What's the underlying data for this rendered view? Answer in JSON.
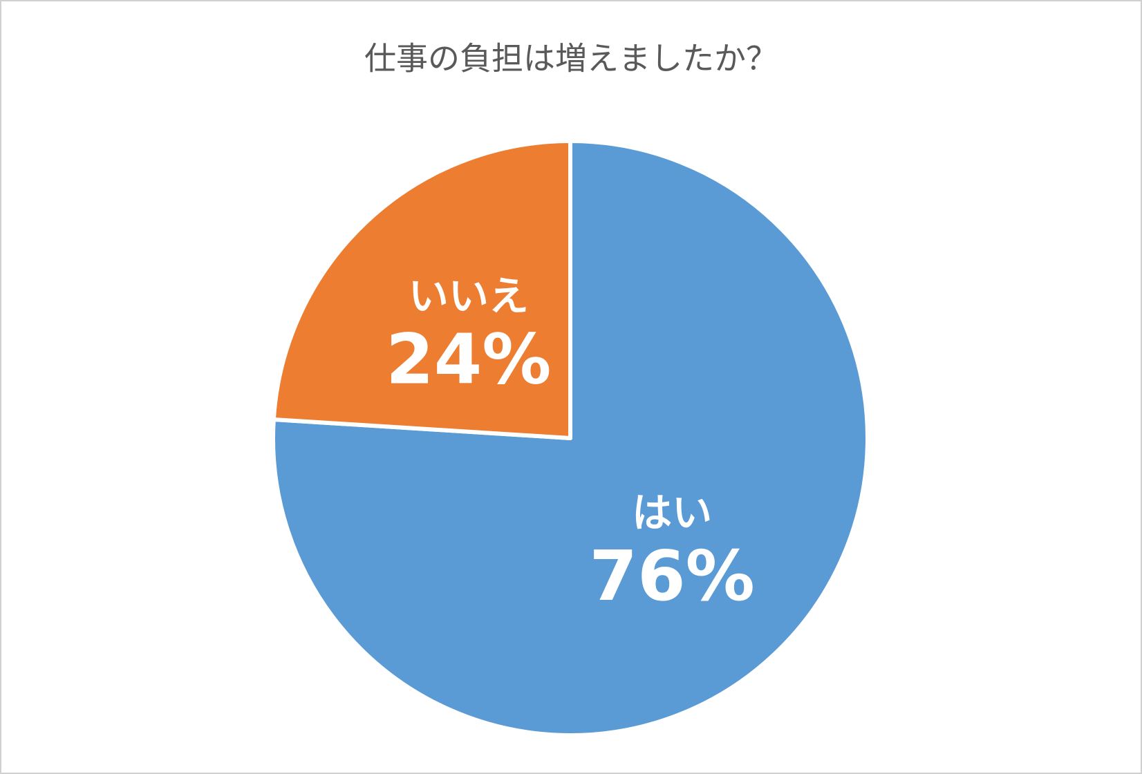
{
  "chart_data": {
    "type": "pie",
    "title": "仕事の負担は増えましたか？",
    "categories": [
      "はい",
      "いいえ"
    ],
    "values": [
      76,
      24
    ],
    "value_labels": [
      "76%",
      "24%"
    ],
    "colors": [
      "#5b9bd5",
      "#ed7d31"
    ]
  }
}
